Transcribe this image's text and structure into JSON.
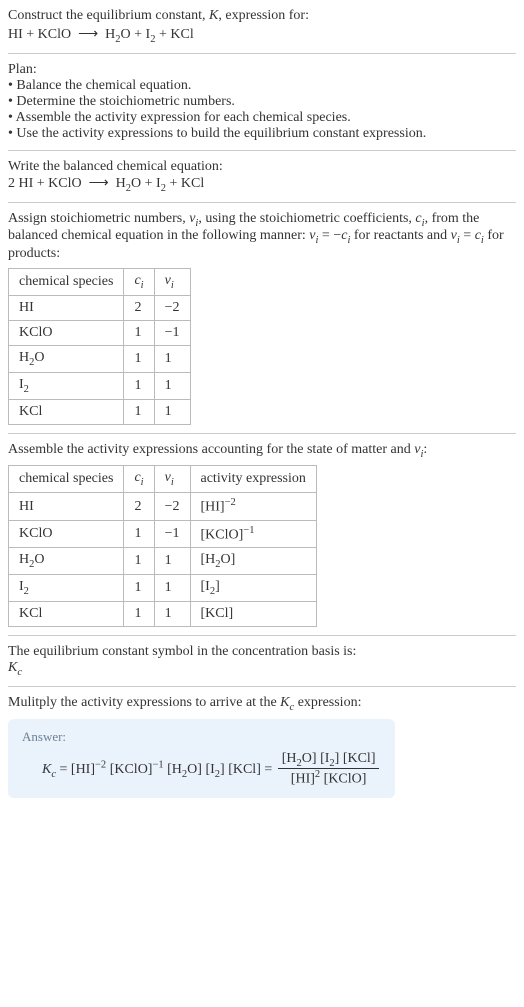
{
  "intro": {
    "line1": "Construct the equilibrium constant, K, expression for:",
    "equation": "HI + KClO ⟶ H₂O + I₂ + KCl"
  },
  "plan": {
    "title": "Plan:",
    "items": [
      "Balance the chemical equation.",
      "Determine the stoichiometric numbers.",
      "Assemble the activity expression for each chemical species.",
      "Use the activity expressions to build the equilibrium constant expression."
    ]
  },
  "balanced": {
    "title": "Write the balanced chemical equation:",
    "equation": "2 HI + KClO ⟶ H₂O + I₂ + KCl"
  },
  "stoich": {
    "text": "Assign stoichiometric numbers, νᵢ, using the stoichiometric coefficients, cᵢ, from the balanced chemical equation in the following manner: νᵢ = −cᵢ for reactants and νᵢ = cᵢ for products:",
    "table": {
      "headers": [
        "chemical species",
        "cᵢ",
        "νᵢ"
      ],
      "rows": [
        [
          "HI",
          "2",
          "−2"
        ],
        [
          "KClO",
          "1",
          "−1"
        ],
        [
          "H₂O",
          "1",
          "1"
        ],
        [
          "I₂",
          "1",
          "1"
        ],
        [
          "KCl",
          "1",
          "1"
        ]
      ]
    }
  },
  "activity": {
    "text": "Assemble the activity expressions accounting for the state of matter and νᵢ:",
    "table": {
      "headers": [
        "chemical species",
        "cᵢ",
        "νᵢ",
        "activity expression"
      ],
      "rows": [
        {
          "species": "HI",
          "c": "2",
          "v": "−2",
          "expr_base": "[HI]",
          "expr_sup": "−2"
        },
        {
          "species": "KClO",
          "c": "1",
          "v": "−1",
          "expr_base": "[KClO]",
          "expr_sup": "−1"
        },
        {
          "species": "H₂O",
          "c": "1",
          "v": "1",
          "expr_base": "[H₂O]",
          "expr_sup": ""
        },
        {
          "species": "I₂",
          "c": "1",
          "v": "1",
          "expr_base": "[I₂]",
          "expr_sup": ""
        },
        {
          "species": "KCl",
          "c": "1",
          "v": "1",
          "expr_base": "[KCl]",
          "expr_sup": ""
        }
      ]
    }
  },
  "eqsymbol": {
    "text": "The equilibrium constant symbol in the concentration basis is:",
    "symbol": "K_c"
  },
  "multiply": {
    "text": "Mulitply the activity expressions to arrive at the K_c expression:"
  },
  "answer": {
    "label": "Answer:",
    "lhs": "K_c = [HI]⁻² [KClO]⁻¹ [H₂O] [I₂] [KCl] = ",
    "frac_num": "[H₂O] [I₂] [KCl]",
    "frac_den": "[HI]² [KClO]"
  },
  "colors": {
    "text": "#333333",
    "divider": "#cccccc",
    "border": "#bbbbbb",
    "answer_bg": "#eaf3fb",
    "answer_label": "#6b8299"
  }
}
